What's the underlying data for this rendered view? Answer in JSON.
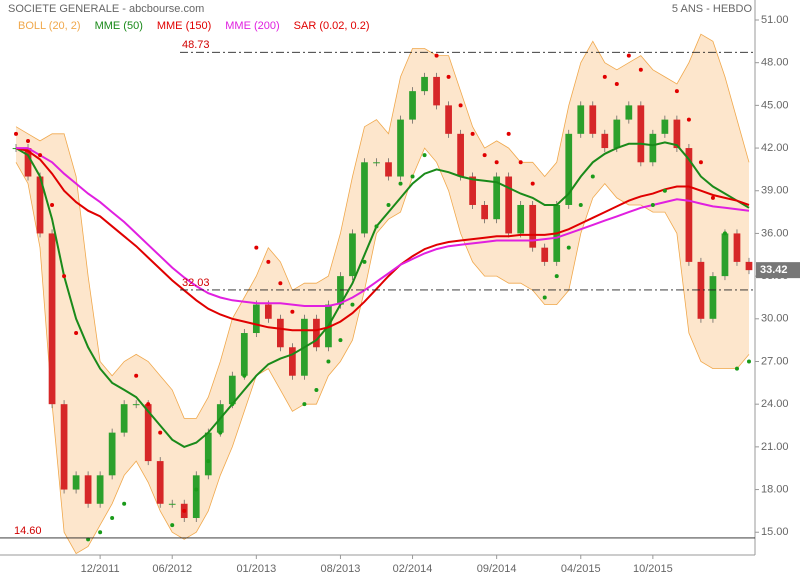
{
  "chart_data": {
    "type": "stock",
    "title": "SOCIETE GENERALE - abcbourse.com",
    "period": "5 ANS - HEBDO",
    "categories": [
      null,
      null,
      null,
      null,
      null,
      null,
      null,
      "12/2011",
      null,
      null,
      null,
      null,
      null,
      "06/2012",
      null,
      null,
      null,
      null,
      null,
      null,
      "01/2013",
      null,
      null,
      null,
      null,
      null,
      null,
      "08/2013",
      null,
      null,
      null,
      null,
      null,
      "02/2014",
      null,
      null,
      null,
      null,
      null,
      null,
      "09/2014",
      null,
      null,
      null,
      null,
      null,
      null,
      "04/2015",
      null,
      null,
      null,
      null,
      null,
      "10/2015",
      null,
      null,
      null,
      null,
      null,
      null,
      null,
      null
    ],
    "series": [
      {
        "name": "Cours",
        "color": "#2ca02c",
        "down_color": "#d62728",
        "kind": "candle",
        "values": [
          42,
          40,
          36,
          24,
          18,
          19,
          17,
          19,
          22,
          24,
          24,
          20,
          17,
          17,
          16,
          19,
          22,
          24,
          26,
          29,
          31,
          30,
          28,
          26,
          30,
          28,
          31,
          33,
          36,
          41,
          41,
          40,
          44,
          46,
          47,
          45,
          43,
          40,
          38,
          37,
          40,
          36,
          38,
          35,
          34,
          38,
          43,
          45,
          43,
          42,
          44,
          45,
          41,
          43,
          44,
          42,
          34,
          30,
          33,
          36,
          34,
          33.42
        ]
      },
      {
        "name": "BOLL (20, 2)",
        "color": "#f0a84c",
        "fill": "#fde6cc",
        "kind": "band",
        "values": [
          43.5,
          43,
          42.5,
          43,
          43,
          40,
          33,
          27,
          26,
          27,
          27.5,
          27,
          26,
          25,
          23,
          23,
          24.5,
          27,
          30,
          31.5,
          33,
          35,
          34,
          32,
          32.5,
          32.5,
          33,
          36,
          40,
          43.5,
          44,
          43,
          47,
          49,
          49,
          48.5,
          48.5,
          46,
          43.5,
          42,
          42.5,
          42,
          41,
          41,
          40,
          41,
          45,
          48,
          49.5,
          48,
          47.5,
          48,
          48.5,
          47.5,
          47,
          46.5,
          48,
          50,
          49.5,
          47,
          44,
          41
        ],
        "lower": [
          41,
          39.5,
          35,
          24,
          15,
          13.5,
          14,
          15.5,
          17,
          19,
          20,
          18.5,
          16.5,
          15,
          14.5,
          15,
          16.5,
          19,
          21,
          23.5,
          26,
          26.5,
          25,
          23.5,
          24,
          24,
          26,
          27,
          28.5,
          32,
          36,
          37,
          37.5,
          40,
          42,
          41,
          39,
          36,
          34,
          33,
          33,
          32.5,
          32.5,
          32,
          31,
          31,
          32,
          36,
          38.5,
          39.5,
          38.5,
          38,
          38,
          37.5,
          37.5,
          36,
          29,
          27,
          26.5,
          26.5,
          26.5,
          27.5
        ]
      },
      {
        "name": "MME (50)",
        "color": "#1a8a1a",
        "kind": "line",
        "values": [
          42,
          41.5,
          40,
          37,
          33,
          30,
          28,
          26.5,
          25.5,
          25,
          24.5,
          23.5,
          22.5,
          21.5,
          21,
          21.3,
          22,
          23,
          24,
          25,
          26,
          26.8,
          27.2,
          27.5,
          28,
          28.5,
          29.5,
          31,
          32.5,
          34.5,
          36.5,
          37.5,
          38.5,
          39.5,
          40.2,
          40.5,
          40.3,
          40,
          39.8,
          39.7,
          39.6,
          39.2,
          38.8,
          38.5,
          38,
          38,
          38.8,
          40,
          41,
          41.6,
          42,
          42.3,
          42.3,
          42.2,
          42.4,
          42.2,
          41.2,
          40,
          39.3,
          38.8,
          38.3,
          37.8
        ]
      },
      {
        "name": "MME (150)",
        "color": "#e00000",
        "kind": "line",
        "values": [
          42,
          41.8,
          41.2,
          40.2,
          39,
          38.2,
          37.6,
          37.2,
          36.5,
          35.8,
          35.1,
          34.3,
          33.5,
          32.7,
          32,
          31.3,
          30.7,
          30.3,
          30,
          29.8,
          29.6,
          29.4,
          29.3,
          29.2,
          29.2,
          29.2,
          29.4,
          29.8,
          30.4,
          31.2,
          32.1,
          33,
          33.8,
          34.4,
          34.9,
          35.2,
          35.4,
          35.5,
          35.6,
          35.7,
          35.8,
          35.8,
          35.9,
          35.9,
          35.9,
          36,
          36.3,
          36.7,
          37.1,
          37.5,
          37.9,
          38.3,
          38.6,
          38.8,
          39.1,
          39.3,
          39.3,
          39,
          38.7,
          38.5,
          38.3,
          38
        ]
      },
      {
        "name": "MME (200)",
        "color": "#e020e0",
        "kind": "line",
        "values": [
          42,
          42,
          41.5,
          41,
          40.2,
          39.5,
          38.8,
          38.2,
          37.5,
          36.8,
          36,
          35.2,
          34.4,
          33.6,
          32.9,
          32.3,
          31.8,
          31.5,
          31.3,
          31.2,
          31.1,
          31.1,
          31.1,
          31,
          30.9,
          30.9,
          30.9,
          31.1,
          31.5,
          32,
          32.6,
          33.2,
          33.8,
          34.2,
          34.6,
          34.9,
          35.1,
          35.2,
          35.3,
          35.4,
          35.5,
          35.5,
          35.5,
          35.5,
          35.6,
          35.7,
          36,
          36.3,
          36.6,
          36.9,
          37.2,
          37.5,
          37.8,
          38,
          38.2,
          38.4,
          38.3,
          38.1,
          37.9,
          37.8,
          37.7,
          37.6
        ]
      },
      {
        "name": "SAR (0.02, 0.2)",
        "color": "#e00000",
        "below_color": "#1a9a1a",
        "kind": "dots",
        "values": [
          43,
          42.5,
          41.5,
          38,
          33,
          29,
          14.5,
          15,
          16,
          17,
          26,
          24,
          22,
          15.5,
          16.5,
          18,
          20,
          22,
          24,
          26,
          35,
          34,
          32.5,
          30.5,
          24,
          25,
          27,
          28.5,
          31,
          34,
          36.5,
          38,
          39.5,
          40,
          41.5,
          48.5,
          47,
          45,
          43,
          41.5,
          41,
          43,
          41,
          39.5,
          31.5,
          33,
          35,
          38,
          40,
          47,
          46.5,
          48.5,
          47.5,
          38,
          39,
          46,
          44,
          41,
          38.5,
          36,
          26.5,
          27
        ]
      }
    ],
    "hlines": [
      {
        "value": 48.73,
        "label": "48.73",
        "dashed": true
      },
      {
        "value": 32.03,
        "label": "32.03",
        "dashed": true
      },
      {
        "value": 14.6,
        "label": "14.60",
        "dashed": false
      }
    ],
    "last_price": {
      "value": 33.42,
      "label": "33.42"
    },
    "ylim": [
      13.4,
      51
    ],
    "yticks": [
      {
        "value": 15,
        "label": "15.00"
      },
      {
        "value": 18,
        "label": "18.00"
      },
      {
        "value": 21,
        "label": "21.00"
      },
      {
        "value": 24,
        "label": "24.00"
      },
      {
        "value": 27,
        "label": "27.00"
      },
      {
        "value": 30,
        "label": "30.00"
      },
      {
        "value": 33,
        "label": "33.00"
      },
      {
        "value": 36,
        "label": "36.00"
      },
      {
        "value": 39,
        "label": "39.00"
      },
      {
        "value": 42,
        "label": "42.00"
      },
      {
        "value": 45,
        "label": "45.00"
      },
      {
        "value": 48,
        "label": "48.00"
      },
      {
        "value": 51,
        "label": "51.00"
      }
    ],
    "grid": false
  }
}
